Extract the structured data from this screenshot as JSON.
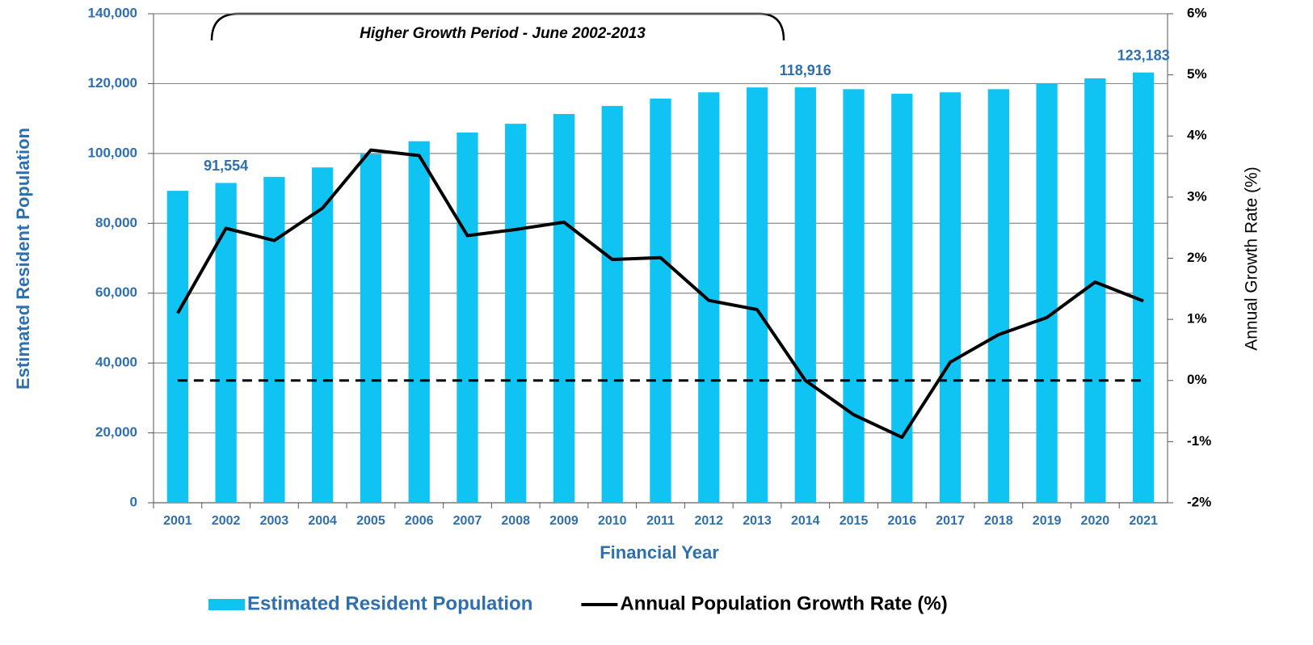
{
  "chart_data": {
    "type": "bar",
    "annotation": "Higher Growth Period - June 2002-2013",
    "xlabel": "Financial Year",
    "ylabel": "Estimated Resident Population",
    "y2label": "Annual Growth Rate (%)",
    "categories": [
      "2001",
      "2002",
      "2003",
      "2004",
      "2005",
      "2006",
      "2007",
      "2008",
      "2009",
      "2010",
      "2011",
      "2012",
      "2013",
      "2014",
      "2015",
      "2016",
      "2017",
      "2018",
      "2019",
      "2020",
      "2021"
    ],
    "series": [
      {
        "name": "Estimated Resident Population",
        "type": "bar",
        "color": "#0fc3f2",
        "values": [
          89300,
          91554,
          93300,
          96000,
          99800,
          103500,
          106000,
          108500,
          111300,
          113600,
          115700,
          117500,
          118900,
          118916,
          118400,
          117100,
          117500,
          118400,
          119900,
          121500,
          123183
        ],
        "value_labels": [
          null,
          "91,554",
          null,
          null,
          null,
          null,
          null,
          null,
          null,
          null,
          null,
          null,
          null,
          "118,916",
          null,
          null,
          null,
          null,
          null,
          null,
          "123,183"
        ]
      },
      {
        "name": "Annual Population Growth Rate (%)",
        "type": "line",
        "axis": "y2",
        "color": "#000000",
        "values": [
          1.1,
          2.49,
          2.29,
          2.82,
          3.77,
          3.68,
          2.37,
          2.47,
          2.59,
          1.98,
          2.01,
          1.31,
          1.16,
          0.0,
          -0.56,
          -0.93,
          0.3,
          0.75,
          1.03,
          1.61,
          1.3
        ]
      }
    ],
    "ylim": [
      0,
      140000
    ],
    "yticks": [
      0,
      {
        "value": 20000,
        "label": "20,000"
      },
      {
        "value": 40000,
        "label": "40,000"
      },
      {
        "value": 60000,
        "label": "60,000"
      },
      {
        "value": 80000,
        "label": "80,000"
      },
      {
        "value": 100000,
        "label": "100,000"
      },
      {
        "value": 120000,
        "label": "120,000"
      },
      {
        "value": 140000,
        "label": "140,000"
      }
    ],
    "y2lim": [
      -2,
      6
    ],
    "y2ticks": [
      {
        "value": -2,
        "label": "-2%"
      },
      {
        "value": -1,
        "label": "-1%"
      },
      {
        "value": 0,
        "label": "0%"
      },
      {
        "value": 1,
        "label": "1%"
      },
      {
        "value": 2,
        "label": "2%"
      },
      {
        "value": 3,
        "label": "3%"
      },
      {
        "value": 4,
        "label": "4%"
      },
      {
        "value": 5,
        "label": "5%"
      },
      {
        "value": 6,
        "label": "6%"
      }
    ],
    "y2_reference_lines": [
      0
    ],
    "grid": true,
    "legend": "bottom"
  }
}
